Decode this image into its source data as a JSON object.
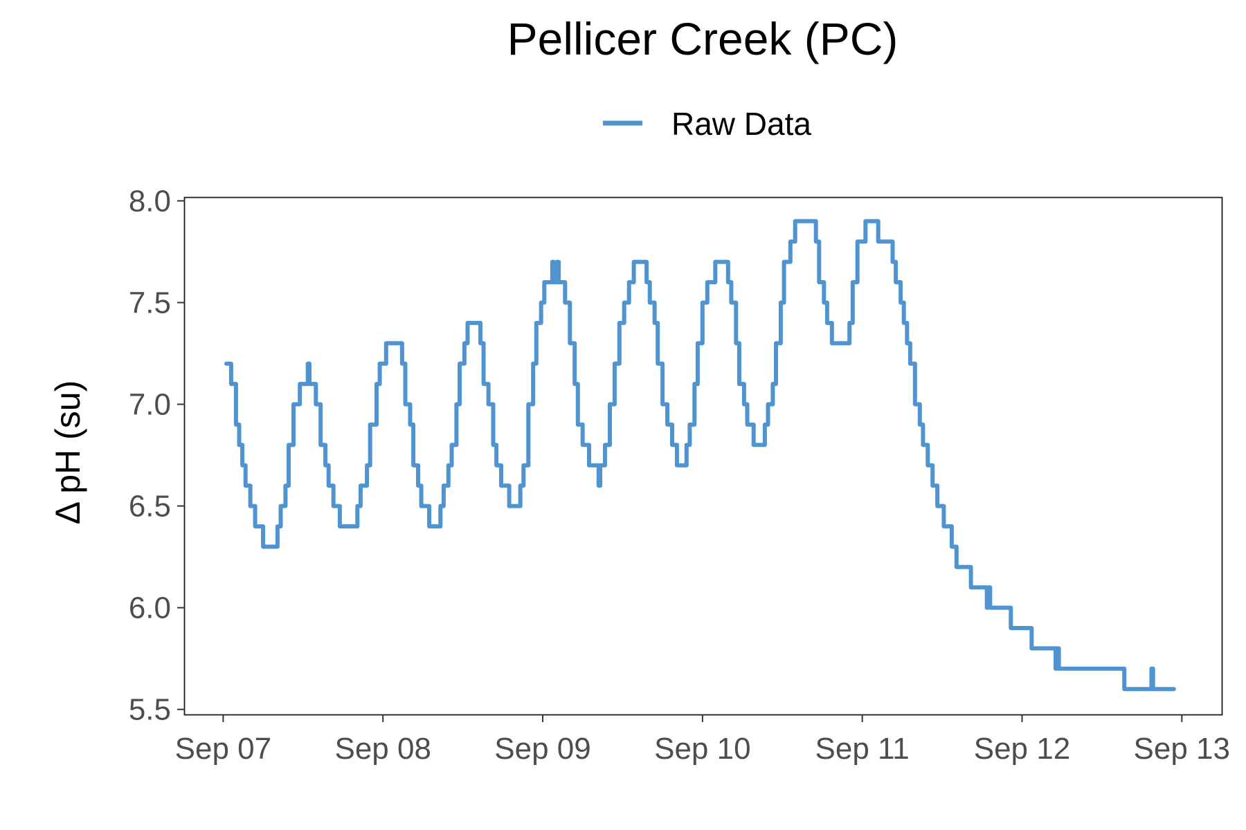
{
  "chart_data": {
    "type": "line",
    "title": "Pellicer Creek (PC)",
    "xlabel": "",
    "ylabel": "Δ pH (su)",
    "legend_position": "top",
    "grid": false,
    "x_axis": {
      "unit": "days",
      "range": [
        7,
        13
      ],
      "ticks": [
        7,
        8,
        9,
        10,
        11,
        12,
        13
      ],
      "tick_labels": [
        "Sep 07",
        "Sep 08",
        "Sep 09",
        "Sep 10",
        "Sep 11",
        "Sep 12",
        "Sep 13"
      ]
    },
    "y_axis": {
      "range": [
        5.5,
        8.0
      ],
      "ticks": [
        5.5,
        6.0,
        6.5,
        7.0,
        7.5,
        8.0
      ],
      "tick_labels": [
        "5.5",
        "6.0",
        "6.5",
        "7.0",
        "7.5",
        "8.0"
      ]
    },
    "series": [
      {
        "name": "Raw Data",
        "color": "#4f93d0",
        "step": true,
        "points": [
          [
            7.02,
            7.2
          ],
          [
            7.05,
            7.1
          ],
          [
            7.08,
            6.9
          ],
          [
            7.1,
            6.8
          ],
          [
            7.12,
            6.7
          ],
          [
            7.14,
            6.6
          ],
          [
            7.17,
            6.5
          ],
          [
            7.2,
            6.4
          ],
          [
            7.25,
            6.3
          ],
          [
            7.34,
            6.4
          ],
          [
            7.36,
            6.5
          ],
          [
            7.39,
            6.6
          ],
          [
            7.41,
            6.8
          ],
          [
            7.44,
            7.0
          ],
          [
            7.48,
            7.1
          ],
          [
            7.53,
            7.2
          ],
          [
            7.54,
            7.1
          ],
          [
            7.58,
            7.0
          ],
          [
            7.61,
            6.8
          ],
          [
            7.64,
            6.7
          ],
          [
            7.66,
            6.6
          ],
          [
            7.69,
            6.5
          ],
          [
            7.73,
            6.4
          ],
          [
            7.84,
            6.5
          ],
          [
            7.86,
            6.6
          ],
          [
            7.9,
            6.7
          ],
          [
            7.92,
            6.9
          ],
          [
            7.96,
            7.1
          ],
          [
            7.98,
            7.2
          ],
          [
            8.02,
            7.3
          ],
          [
            8.12,
            7.2
          ],
          [
            8.14,
            7.0
          ],
          [
            8.17,
            6.9
          ],
          [
            8.19,
            6.7
          ],
          [
            8.22,
            6.6
          ],
          [
            8.24,
            6.5
          ],
          [
            8.29,
            6.4
          ],
          [
            8.36,
            6.5
          ],
          [
            8.38,
            6.6
          ],
          [
            8.41,
            6.7
          ],
          [
            8.43,
            6.8
          ],
          [
            8.46,
            7.0
          ],
          [
            8.48,
            7.2
          ],
          [
            8.51,
            7.3
          ],
          [
            8.53,
            7.4
          ],
          [
            8.61,
            7.3
          ],
          [
            8.63,
            7.1
          ],
          [
            8.66,
            7.0
          ],
          [
            8.69,
            6.8
          ],
          [
            8.71,
            6.7
          ],
          [
            8.74,
            6.6
          ],
          [
            8.79,
            6.5
          ],
          [
            8.86,
            6.6
          ],
          [
            8.88,
            6.7
          ],
          [
            8.91,
            7.0
          ],
          [
            8.94,
            7.2
          ],
          [
            8.96,
            7.4
          ],
          [
            8.99,
            7.5
          ],
          [
            9.01,
            7.6
          ],
          [
            9.06,
            7.7
          ],
          [
            9.07,
            7.6
          ],
          [
            9.09,
            7.7
          ],
          [
            9.1,
            7.6
          ],
          [
            9.14,
            7.5
          ],
          [
            9.17,
            7.3
          ],
          [
            9.2,
            7.1
          ],
          [
            9.22,
            6.9
          ],
          [
            9.25,
            6.8
          ],
          [
            9.29,
            6.7
          ],
          [
            9.35,
            6.6
          ],
          [
            9.36,
            6.7
          ],
          [
            9.39,
            6.8
          ],
          [
            9.42,
            7.0
          ],
          [
            9.45,
            7.2
          ],
          [
            9.48,
            7.4
          ],
          [
            9.51,
            7.5
          ],
          [
            9.54,
            7.6
          ],
          [
            9.57,
            7.7
          ],
          [
            9.65,
            7.6
          ],
          [
            9.67,
            7.5
          ],
          [
            9.7,
            7.4
          ],
          [
            9.72,
            7.2
          ],
          [
            9.75,
            7.0
          ],
          [
            9.78,
            6.9
          ],
          [
            9.81,
            6.8
          ],
          [
            9.84,
            6.7
          ],
          [
            9.9,
            6.8
          ],
          [
            9.92,
            6.9
          ],
          [
            9.95,
            7.1
          ],
          [
            9.97,
            7.3
          ],
          [
            10.0,
            7.5
          ],
          [
            10.03,
            7.6
          ],
          [
            10.08,
            7.7
          ],
          [
            10.16,
            7.6
          ],
          [
            10.18,
            7.5
          ],
          [
            10.21,
            7.3
          ],
          [
            10.23,
            7.1
          ],
          [
            10.26,
            7.0
          ],
          [
            10.28,
            6.9
          ],
          [
            10.32,
            6.8
          ],
          [
            10.39,
            6.9
          ],
          [
            10.41,
            7.0
          ],
          [
            10.44,
            7.1
          ],
          [
            10.46,
            7.3
          ],
          [
            10.49,
            7.5
          ],
          [
            10.51,
            7.7
          ],
          [
            10.55,
            7.8
          ],
          [
            10.58,
            7.9
          ],
          [
            10.71,
            7.8
          ],
          [
            10.73,
            7.6
          ],
          [
            10.76,
            7.5
          ],
          [
            10.78,
            7.4
          ],
          [
            10.81,
            7.3
          ],
          [
            10.92,
            7.4
          ],
          [
            10.94,
            7.6
          ],
          [
            10.97,
            7.8
          ],
          [
            11.02,
            7.9
          ],
          [
            11.1,
            7.8
          ],
          [
            11.19,
            7.7
          ],
          [
            11.21,
            7.6
          ],
          [
            11.24,
            7.5
          ],
          [
            11.26,
            7.4
          ],
          [
            11.28,
            7.3
          ],
          [
            11.3,
            7.2
          ],
          [
            11.33,
            7.0
          ],
          [
            11.36,
            6.9
          ],
          [
            11.38,
            6.8
          ],
          [
            11.41,
            6.7
          ],
          [
            11.44,
            6.6
          ],
          [
            11.47,
            6.5
          ],
          [
            11.51,
            6.4
          ],
          [
            11.56,
            6.3
          ],
          [
            11.59,
            6.2
          ],
          [
            11.68,
            6.1
          ],
          [
            11.77,
            6.1
          ],
          [
            11.78,
            6.0
          ],
          [
            11.79,
            6.1
          ],
          [
            11.8,
            6.0
          ],
          [
            11.93,
            5.9
          ],
          [
            12.06,
            5.8
          ],
          [
            12.2,
            5.8
          ],
          [
            12.21,
            5.7
          ],
          [
            12.22,
            5.8
          ],
          [
            12.23,
            5.7
          ],
          [
            12.64,
            5.6
          ],
          [
            12.8,
            5.6
          ],
          [
            12.81,
            5.7
          ],
          [
            12.82,
            5.6
          ],
          [
            12.95,
            5.6
          ]
        ]
      }
    ]
  }
}
